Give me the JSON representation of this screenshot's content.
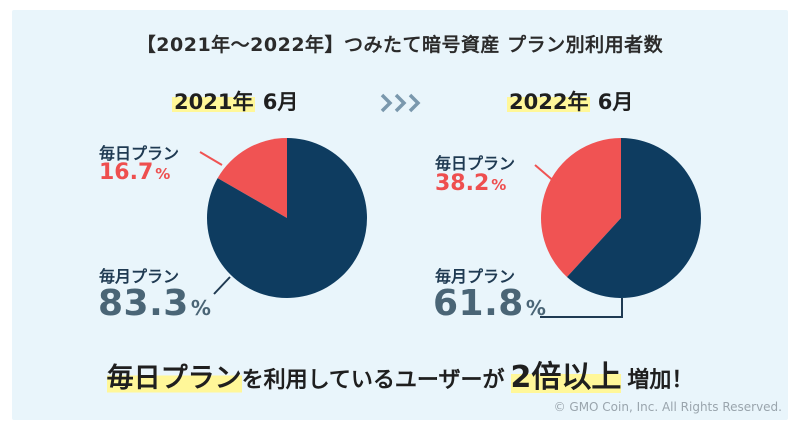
{
  "title": "【2021年〜2022年】つみたて暗号資産 プラン別利用者数",
  "headline": {
    "part1": "毎日プラン",
    "part2": "を利用しているユーザーが",
    "part3": "2倍以上",
    "part4": "増加！"
  },
  "copyright": "© GMO Coin, Inc. All Rights Reserved.",
  "colors": {
    "daily": "#f05353",
    "monthly": "#0e3c60",
    "background": "#e9f5fb",
    "highlight": "#fff799"
  },
  "arrows_icon": "triple-chevron-right-icon",
  "chart_data": [
    {
      "type": "pie",
      "period": {
        "year": "2021年",
        "month": "6月"
      },
      "slices": [
        {
          "label": "毎日プラン",
          "value": 16.7,
          "display": "16.7",
          "unit": "%"
        },
        {
          "label": "毎月プラン",
          "value": 83.3,
          "display": "83.3",
          "unit": "%"
        }
      ]
    },
    {
      "type": "pie",
      "period": {
        "year": "2022年",
        "month": "6月"
      },
      "slices": [
        {
          "label": "毎日プラン",
          "value": 38.2,
          "display": "38.2",
          "unit": "%"
        },
        {
          "label": "毎月プラン",
          "value": 61.8,
          "display": "61.8",
          "unit": "%"
        }
      ]
    }
  ]
}
